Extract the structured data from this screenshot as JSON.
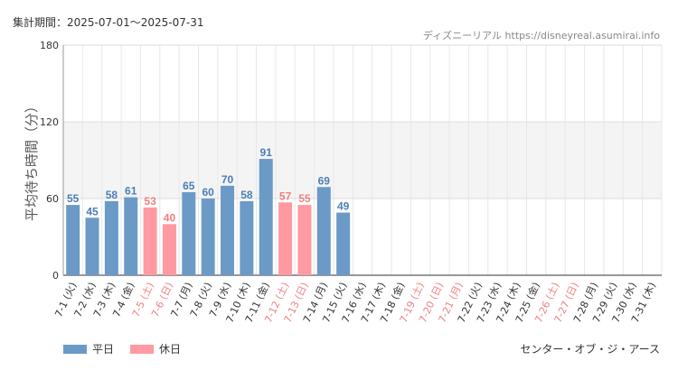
{
  "header": {
    "period_label": "集計期間：2025-07-01～2025-07-31",
    "site_label": "ディズニーリアル https://disneyreal.asumirai.info"
  },
  "attraction_label": "センター・オブ・ジ・アース",
  "legend": {
    "weekday_label": "平日",
    "holiday_label": "休日",
    "weekday_color": "#6b9ac7",
    "holiday_color": "#ff9aa2"
  },
  "chart_data": {
    "type": "bar",
    "ylabel": "平均待ち時間（分）",
    "ylim": [
      0,
      180
    ],
    "yticks": [
      0,
      60,
      120,
      180
    ],
    "categories": [
      "7-1 (火)",
      "7-2 (水)",
      "7-3 (木)",
      "7-4 (金)",
      "7-5 (土)",
      "7-6 (日)",
      "7-7 (月)",
      "7-8 (火)",
      "7-9 (水)",
      "7-10 (木)",
      "7-11 (金)",
      "7-12 (土)",
      "7-13 (日)",
      "7-14 (月)",
      "7-15 (火)",
      "7-16 (水)",
      "7-17 (木)",
      "7-18 (金)",
      "7-19 (土)",
      "7-20 (日)",
      "7-21 (月)",
      "7-22 (火)",
      "7-23 (水)",
      "7-24 (木)",
      "7-25 (金)",
      "7-26 (土)",
      "7-27 (日)",
      "7-28 (月)",
      "7-29 (火)",
      "7-30 (水)",
      "7-31 (木)"
    ],
    "values": [
      55,
      45,
      58,
      61,
      53,
      40,
      65,
      60,
      70,
      58,
      91,
      57,
      55,
      69,
      49,
      null,
      null,
      null,
      null,
      null,
      null,
      null,
      null,
      null,
      null,
      null,
      null,
      null,
      null,
      null,
      null
    ],
    "holiday": [
      false,
      false,
      false,
      false,
      true,
      true,
      false,
      false,
      false,
      false,
      false,
      true,
      true,
      false,
      false,
      false,
      false,
      false,
      true,
      true,
      true,
      false,
      false,
      false,
      false,
      true,
      true,
      false,
      false,
      false,
      false
    ],
    "label_weekday_color": "#4a7fb5",
    "label_holiday_color": "#f08080"
  }
}
